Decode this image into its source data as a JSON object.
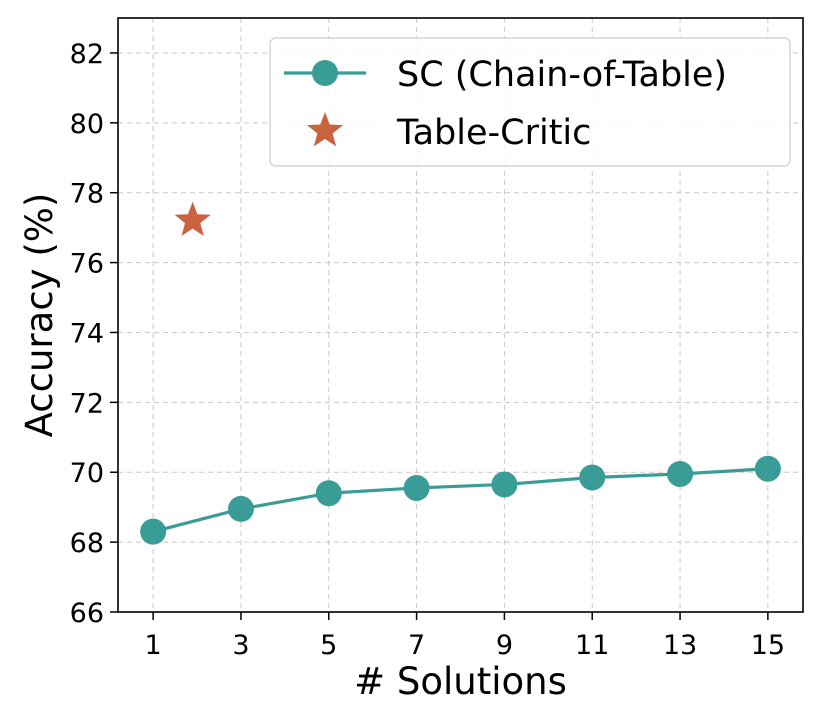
{
  "chart_data": {
    "type": "line",
    "xlabel": "# Solutions",
    "ylabel": "Accuracy (%)",
    "xlim": [
      0.2,
      15.8
    ],
    "ylim": [
      66,
      83
    ],
    "x_ticks": [
      1,
      3,
      5,
      7,
      9,
      11,
      13,
      15
    ],
    "y_ticks": [
      66,
      68,
      70,
      72,
      74,
      76,
      78,
      80,
      82
    ],
    "grid": true,
    "legend_position": "top-right",
    "series": [
      {
        "name": "SC (Chain-of-Table)",
        "kind": "line",
        "marker": "circle",
        "color": "#3a9c96",
        "x": [
          1,
          3,
          5,
          7,
          9,
          11,
          13,
          15
        ],
        "y": [
          68.3,
          68.95,
          69.4,
          69.55,
          69.65,
          69.85,
          69.95,
          70.1
        ]
      },
      {
        "name": "Table-Critic",
        "kind": "scatter",
        "marker": "star",
        "color": "#c9623f",
        "x": [
          1.9
        ],
        "y": [
          77.2
        ]
      }
    ]
  }
}
